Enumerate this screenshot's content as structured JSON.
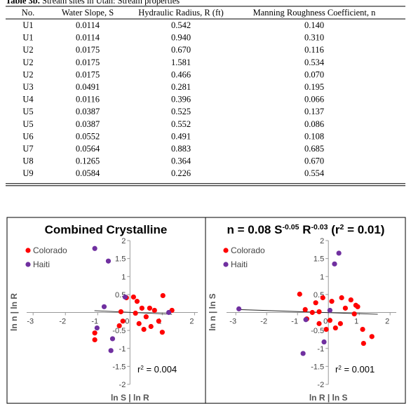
{
  "table": {
    "caption": {
      "label": "Table 3b.",
      "text": " Stream sites in Utah: Stream properties"
    },
    "columns": [
      "No.",
      "Water Slope, S",
      "Hydraulic Radius, R (ft)",
      "Manning Roughness Coefficient, n"
    ],
    "rows": [
      [
        "U1",
        "0.0114",
        "0.542",
        "0.140"
      ],
      [
        "U1",
        "0.0114",
        "0.940",
        "0.310"
      ],
      [
        "U2",
        "0.0175",
        "0.670",
        "0.116"
      ],
      [
        "U2",
        "0.0175",
        "1.581",
        "0.534"
      ],
      [
        "U2",
        "0.0175",
        "0.466",
        "0.070"
      ],
      [
        "U3",
        "0.0491",
        "0.281",
        "0.195"
      ],
      [
        "U4",
        "0.0116",
        "0.396",
        "0.066"
      ],
      [
        "U5",
        "0.0387",
        "0.525",
        "0.137"
      ],
      [
        "U5",
        "0.0387",
        "0.552",
        "0.086"
      ],
      [
        "U6",
        "0.0552",
        "0.491",
        "0.108"
      ],
      [
        "U7",
        "0.0564",
        "0.883",
        "0.685"
      ],
      [
        "U8",
        "0.1265",
        "0.364",
        "0.670"
      ],
      [
        "U9",
        "0.0584",
        "0.226",
        "0.554"
      ]
    ]
  },
  "chart_data": [
    {
      "type": "scatter",
      "title_parts": [
        {
          "text": "Combined Crystalline"
        }
      ],
      "y_label": "ln n | ln R",
      "x_label": "ln S | ln R",
      "annotation_parts": [
        {
          "text": "r"
        },
        {
          "text": "2",
          "sup": true
        },
        {
          "text": " = 0.004"
        }
      ],
      "xlim": [
        -3.2,
        2.1
      ],
      "ylim": [
        -2,
        2
      ],
      "xticks": [
        -3,
        -2,
        -1,
        0,
        1,
        2
      ],
      "yticks": [
        -2,
        -1.5,
        -1,
        -0.5,
        0.5,
        1,
        1.5,
        2
      ],
      "trendline": {
        "x": [
          -1.1,
          1.3
        ],
        "y": [
          0.05,
          -0.05
        ],
        "color": "#222222"
      },
      "series": [
        {
          "name": "Colorado",
          "color": "#ff0000",
          "x": [
            -1.09,
            -1.09,
            -0.33,
            -0.28,
            -0.22,
            -0.11,
            0.11,
            0.22,
            0.17,
            0.28,
            0.37,
            0.43,
            0.5,
            0.61,
            0.65,
            0.76,
            0.89,
            1.02,
            1.0,
            1.3
          ],
          "y": [
            -0.57,
            -0.76,
            -0.37,
            0.02,
            -0.24,
            0.41,
            0.43,
            0.31,
            -0.02,
            -0.31,
            0.12,
            -0.47,
            -0.12,
            0.12,
            -0.39,
            0.06,
            -0.24,
            0.47,
            -0.55,
            0.06
          ]
        },
        {
          "name": "Haiti",
          "color": "#7030a0",
          "x": [
            -1.09,
            -0.67,
            -0.8,
            -1.02,
            -0.54,
            -0.59,
            -0.15,
            1.2
          ],
          "y": [
            1.78,
            1.43,
            0.16,
            -0.43,
            -0.73,
            -1.06,
            0.43,
            0.0
          ]
        }
      ]
    },
    {
      "type": "scatter",
      "title_parts": [
        {
          "text": "n = 0.08 S"
        },
        {
          "text": "-0.05",
          "sup": true
        },
        {
          "text": " R"
        },
        {
          "text": "-0.03",
          "sup": true
        },
        {
          "text": " (r"
        },
        {
          "text": "2",
          "sup": true
        },
        {
          "text": " = 0.01)"
        }
      ],
      "y_label": "ln n | ln S",
      "x_label": "ln R | ln S",
      "annotation_parts": [
        {
          "text": "r"
        },
        {
          "text": "2",
          "sup": true
        },
        {
          "text": " = 0.001"
        }
      ],
      "xlim": [
        -3.3,
        2.2
      ],
      "ylim": [
        -2,
        2
      ],
      "xticks": [
        -3,
        -2,
        -1,
        0,
        1,
        2
      ],
      "yticks": [
        -2,
        -1.5,
        -1,
        -0.5,
        0.5,
        1,
        1.5,
        2
      ],
      "trendline": {
        "x": [
          -2.9,
          1.6
        ],
        "y": [
          0.08,
          -0.05
        ],
        "color": "#222222"
      },
      "series": [
        {
          "name": "Colorado",
          "color": "#ff0000",
          "x": [
            -0.93,
            -0.75,
            -0.7,
            -0.41,
            -0.3,
            -0.3,
            -0.18,
            -0.07,
            0.05,
            0.11,
            0.23,
            0.39,
            0.43,
            0.55,
            0.73,
            0.84,
            0.89,
            0.95,
            1.11,
            1.41,
            1.14,
            -0.52
          ],
          "y": [
            0.51,
            0.08,
            -0.18,
            0.27,
            0.02,
            -0.31,
            0.41,
            -0.47,
            -0.22,
            0.31,
            -0.43,
            -0.31,
            0.41,
            0.12,
            0.35,
            -0.04,
            0.2,
            0.16,
            -0.47,
            -0.67,
            -0.86,
            0.0
          ]
        },
        {
          "name": "Haiti",
          "color": "#7030a0",
          "x": [
            -2.9,
            0.34,
            0.2,
            -0.73,
            -0.14,
            -0.82,
            0.05
          ],
          "y": [
            0.1,
            1.65,
            1.35,
            -0.2,
            -0.82,
            -1.14,
            0.06
          ]
        }
      ]
    }
  ]
}
